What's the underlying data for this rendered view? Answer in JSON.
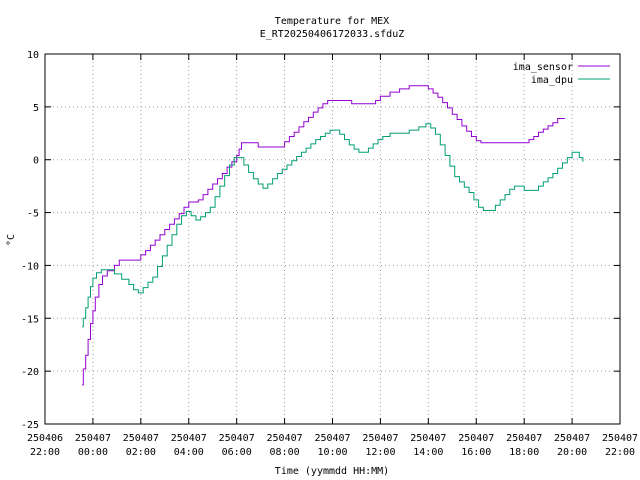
{
  "chart_data": {
    "type": "line",
    "title_line1": "Temperature for MEX",
    "title_line2": "E_RT20250406172033.sfduZ",
    "xlabel": "Time (yymmdd HH:MM)",
    "ylabel": "°C",
    "ylim": [
      -25,
      10
    ],
    "yticks": [
      -25,
      -20,
      -15,
      -10,
      -5,
      0,
      5,
      10
    ],
    "xlim": [
      -2,
      22
    ],
    "xticks": [
      {
        "x": -2,
        "date": "250406",
        "time": "22:00"
      },
      {
        "x": 0,
        "date": "250407",
        "time": "00:00"
      },
      {
        "x": 2,
        "date": "250407",
        "time": "02:00"
      },
      {
        "x": 4,
        "date": "250407",
        "time": "04:00"
      },
      {
        "x": 6,
        "date": "250407",
        "time": "06:00"
      },
      {
        "x": 8,
        "date": "250407",
        "time": "08:00"
      },
      {
        "x": 10,
        "date": "250407",
        "time": "10:00"
      },
      {
        "x": 12,
        "date": "250407",
        "time": "12:00"
      },
      {
        "x": 14,
        "date": "250407",
        "time": "14:00"
      },
      {
        "x": 16,
        "date": "250407",
        "time": "16:00"
      },
      {
        "x": 18,
        "date": "250407",
        "time": "18:00"
      },
      {
        "x": 20,
        "date": "250407",
        "time": "20:00"
      },
      {
        "x": 22,
        "date": "250407",
        "time": "22:00"
      }
    ],
    "grid": true,
    "legend_position": "top-right",
    "series": [
      {
        "name": "ima_sensor",
        "color": "#9400d3",
        "points": [
          [
            -0.45,
            -21.3
          ],
          [
            -0.4,
            -19.8
          ],
          [
            -0.3,
            -18.5
          ],
          [
            -0.2,
            -17.0
          ],
          [
            -0.1,
            -15.5
          ],
          [
            0.0,
            -14.3
          ],
          [
            0.1,
            -13.0
          ],
          [
            0.25,
            -11.8
          ],
          [
            0.4,
            -11.0
          ],
          [
            0.6,
            -10.5
          ],
          [
            0.9,
            -10.0
          ],
          [
            1.1,
            -9.5
          ],
          [
            1.5,
            -9.5
          ],
          [
            1.9,
            -9.5
          ],
          [
            2.0,
            -9.0
          ],
          [
            2.2,
            -8.6
          ],
          [
            2.4,
            -8.1
          ],
          [
            2.6,
            -7.6
          ],
          [
            2.8,
            -7.1
          ],
          [
            3.0,
            -6.6
          ],
          [
            3.2,
            -6.1
          ],
          [
            3.4,
            -5.6
          ],
          [
            3.6,
            -5.1
          ],
          [
            3.8,
            -4.5
          ],
          [
            4.0,
            -4.0
          ],
          [
            4.4,
            -3.8
          ],
          [
            4.6,
            -3.3
          ],
          [
            4.8,
            -2.8
          ],
          [
            5.0,
            -2.3
          ],
          [
            5.2,
            -1.8
          ],
          [
            5.4,
            -1.3
          ],
          [
            5.6,
            -0.7
          ],
          [
            5.8,
            -0.2
          ],
          [
            6.0,
            0.4
          ],
          [
            6.1,
            1.0
          ],
          [
            6.2,
            1.6
          ],
          [
            6.8,
            1.6
          ],
          [
            6.9,
            1.2
          ],
          [
            7.4,
            1.2
          ],
          [
            7.8,
            1.2
          ],
          [
            8.0,
            1.7
          ],
          [
            8.2,
            2.2
          ],
          [
            8.4,
            2.6
          ],
          [
            8.6,
            3.1
          ],
          [
            8.8,
            3.6
          ],
          [
            9.0,
            4.0
          ],
          [
            9.2,
            4.5
          ],
          [
            9.4,
            4.9
          ],
          [
            9.6,
            5.3
          ],
          [
            9.8,
            5.6
          ],
          [
            10.6,
            5.6
          ],
          [
            10.8,
            5.3
          ],
          [
            11.6,
            5.3
          ],
          [
            11.8,
            5.6
          ],
          [
            12.0,
            6.0
          ],
          [
            12.4,
            6.4
          ],
          [
            12.8,
            6.7
          ],
          [
            13.2,
            7.0
          ],
          [
            13.8,
            7.0
          ],
          [
            14.0,
            6.7
          ],
          [
            14.2,
            6.3
          ],
          [
            14.4,
            5.9
          ],
          [
            14.6,
            5.4
          ],
          [
            14.8,
            4.9
          ],
          [
            15.0,
            4.3
          ],
          [
            15.2,
            3.8
          ],
          [
            15.4,
            3.2
          ],
          [
            15.6,
            2.7
          ],
          [
            15.8,
            2.2
          ],
          [
            16.0,
            1.8
          ],
          [
            16.2,
            1.6
          ],
          [
            17.0,
            1.6
          ],
          [
            17.8,
            1.6
          ],
          [
            18.0,
            1.6
          ],
          [
            18.2,
            1.9
          ],
          [
            18.4,
            2.2
          ],
          [
            18.6,
            2.6
          ],
          [
            18.8,
            2.9
          ],
          [
            19.0,
            3.2
          ],
          [
            19.2,
            3.5
          ],
          [
            19.4,
            3.9
          ],
          [
            19.7,
            3.9
          ]
        ]
      },
      {
        "name": "ima_dpu",
        "color": "#009e73",
        "points": [
          [
            -0.45,
            -15.8
          ],
          [
            -0.4,
            -15.0
          ],
          [
            -0.3,
            -14.0
          ],
          [
            -0.2,
            -13.0
          ],
          [
            -0.1,
            -12.0
          ],
          [
            0.0,
            -11.2
          ],
          [
            0.15,
            -10.7
          ],
          [
            0.35,
            -10.4
          ],
          [
            0.6,
            -10.4
          ],
          [
            0.9,
            -10.8
          ],
          [
            1.2,
            -11.3
          ],
          [
            1.5,
            -11.8
          ],
          [
            1.7,
            -12.3
          ],
          [
            1.9,
            -12.6
          ],
          [
            2.1,
            -12.1
          ],
          [
            2.3,
            -11.6
          ],
          [
            2.5,
            -11.1
          ],
          [
            2.7,
            -10.1
          ],
          [
            2.9,
            -9.1
          ],
          [
            3.1,
            -8.1
          ],
          [
            3.3,
            -7.1
          ],
          [
            3.5,
            -6.1
          ],
          [
            3.7,
            -5.3
          ],
          [
            3.9,
            -4.9
          ],
          [
            4.1,
            -5.3
          ],
          [
            4.3,
            -5.7
          ],
          [
            4.5,
            -5.4
          ],
          [
            4.7,
            -5.0
          ],
          [
            4.9,
            -4.5
          ],
          [
            5.1,
            -3.5
          ],
          [
            5.3,
            -2.5
          ],
          [
            5.5,
            -1.5
          ],
          [
            5.7,
            -0.5
          ],
          [
            5.9,
            0.2
          ],
          [
            6.1,
            0.2
          ],
          [
            6.3,
            -0.5
          ],
          [
            6.5,
            -1.2
          ],
          [
            6.7,
            -1.8
          ],
          [
            6.9,
            -2.3
          ],
          [
            7.1,
            -2.7
          ],
          [
            7.3,
            -2.3
          ],
          [
            7.5,
            -1.8
          ],
          [
            7.7,
            -1.3
          ],
          [
            7.9,
            -0.9
          ],
          [
            8.1,
            -0.5
          ],
          [
            8.3,
            -0.1
          ],
          [
            8.5,
            0.3
          ],
          [
            8.7,
            0.7
          ],
          [
            8.9,
            1.1
          ],
          [
            9.1,
            1.5
          ],
          [
            9.3,
            1.9
          ],
          [
            9.5,
            2.2
          ],
          [
            9.7,
            2.5
          ],
          [
            9.9,
            2.8
          ],
          [
            10.1,
            2.8
          ],
          [
            10.3,
            2.4
          ],
          [
            10.5,
            1.9
          ],
          [
            10.7,
            1.4
          ],
          [
            10.9,
            1.0
          ],
          [
            11.1,
            0.7
          ],
          [
            11.3,
            0.7
          ],
          [
            11.5,
            1.1
          ],
          [
            11.7,
            1.5
          ],
          [
            11.9,
            1.9
          ],
          [
            12.1,
            2.2
          ],
          [
            12.4,
            2.5
          ],
          [
            12.8,
            2.5
          ],
          [
            13.2,
            2.8
          ],
          [
            13.6,
            3.1
          ],
          [
            13.9,
            3.4
          ],
          [
            14.1,
            3.0
          ],
          [
            14.3,
            2.4
          ],
          [
            14.5,
            1.4
          ],
          [
            14.7,
            0.4
          ],
          [
            14.9,
            -0.6
          ],
          [
            15.1,
            -1.6
          ],
          [
            15.3,
            -2.1
          ],
          [
            15.5,
            -2.6
          ],
          [
            15.7,
            -3.1
          ],
          [
            15.9,
            -3.8
          ],
          [
            16.1,
            -4.5
          ],
          [
            16.3,
            -4.8
          ],
          [
            16.6,
            -4.8
          ],
          [
            16.8,
            -4.3
          ],
          [
            17.0,
            -3.8
          ],
          [
            17.2,
            -3.3
          ],
          [
            17.4,
            -2.8
          ],
          [
            17.6,
            -2.5
          ],
          [
            17.8,
            -2.5
          ],
          [
            18.0,
            -2.9
          ],
          [
            18.4,
            -2.9
          ],
          [
            18.6,
            -2.5
          ],
          [
            18.8,
            -2.1
          ],
          [
            19.0,
            -1.7
          ],
          [
            19.2,
            -1.3
          ],
          [
            19.4,
            -0.8
          ],
          [
            19.6,
            -0.3
          ],
          [
            19.8,
            0.2
          ],
          [
            20.0,
            0.7
          ],
          [
            20.15,
            0.7
          ],
          [
            20.3,
            0.2
          ],
          [
            20.45,
            -0.2
          ]
        ]
      }
    ]
  }
}
